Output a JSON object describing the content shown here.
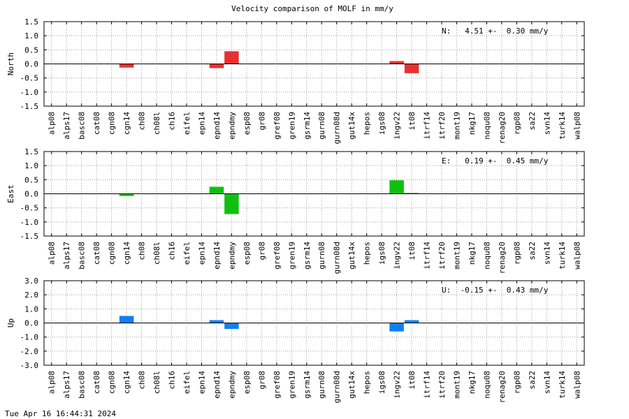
{
  "figure": {
    "title": "Velocity comparison of MOLF in mm/y",
    "timestamp": "Tue Apr 16 16:44:31 2024"
  },
  "chart_data": [
    {
      "type": "bar",
      "ylabel": "North",
      "ylim": [
        -1.5,
        1.5
      ],
      "yticks": [
        "1.5",
        "1.0",
        "0.5",
        "0.0",
        "-0.5",
        "-1.0",
        "-1.5"
      ],
      "grid": true,
      "annotation": "N:   4.51 +-  0.30 mm/y",
      "color": "#e83030",
      "categories": [
        "alp08",
        "alps17",
        "basc08",
        "cat08",
        "cgn08",
        "cgn14",
        "ch08",
        "ch08l",
        "ch16",
        "eifel",
        "epn14",
        "epnd14",
        "epndmy",
        "esp08",
        "gr08",
        "gref08",
        "gren19",
        "gsrm14",
        "gurn08",
        "gurn08d",
        "gut14x",
        "hepos",
        "igs08",
        "ingv22",
        "it08",
        "itrf14",
        "itrf20",
        "mont19",
        "nkg17",
        "noqu08",
        "renag20",
        "rgp08",
        "sa22",
        "svn14",
        "turk14",
        "walp08"
      ],
      "values": [
        0,
        0,
        0,
        0,
        0,
        -0.13,
        0,
        0,
        0,
        0,
        0,
        -0.15,
        0.45,
        0,
        0,
        0,
        0,
        0,
        0,
        0,
        0,
        0,
        0,
        0.1,
        -0.33,
        0,
        0,
        0,
        0,
        0,
        0,
        0,
        0,
        0,
        0,
        0
      ]
    },
    {
      "type": "bar",
      "ylabel": "East",
      "ylim": [
        -1.5,
        1.5
      ],
      "yticks": [
        "1.5",
        "1.0",
        "0.5",
        "0.0",
        "-0.5",
        "-1.0",
        "-1.5"
      ],
      "grid": true,
      "annotation": "E:   0.19 +-  0.45 mm/y",
      "color": "#10c010",
      "categories": [
        "alp08",
        "alps17",
        "basc08",
        "cat08",
        "cgn08",
        "cgn14",
        "ch08",
        "ch08l",
        "ch16",
        "eifel",
        "epn14",
        "epnd14",
        "epndmy",
        "esp08",
        "gr08",
        "gref08",
        "gren19",
        "gsrm14",
        "gurn08",
        "gurn08d",
        "gut14x",
        "hepos",
        "igs08",
        "ingv22",
        "it08",
        "itrf14",
        "itrf20",
        "mont19",
        "nkg17",
        "noqu08",
        "renag20",
        "rgp08",
        "sa22",
        "svn14",
        "turk14",
        "walp08"
      ],
      "values": [
        0,
        0,
        0,
        0,
        0,
        -0.08,
        0,
        0,
        0,
        0,
        0,
        0.25,
        -0.72,
        0,
        0,
        0,
        0,
        0,
        0,
        0,
        0,
        0,
        0,
        0.48,
        0.03,
        0,
        0,
        0,
        0,
        0,
        0,
        0,
        0,
        0,
        0,
        0
      ]
    },
    {
      "type": "bar",
      "ylabel": "Up",
      "ylim": [
        -3.0,
        3.0
      ],
      "yticks": [
        "3.0",
        "2.0",
        "1.0",
        "0.0",
        "-1.0",
        "-2.0",
        "-3.0"
      ],
      "grid": true,
      "annotation": "U:  -0.15 +-  0.43 mm/y",
      "color": "#1080f0",
      "categories": [
        "alp08",
        "alps17",
        "basc08",
        "cat08",
        "cgn08",
        "cgn14",
        "ch08",
        "ch08l",
        "ch16",
        "eifel",
        "epn14",
        "epnd14",
        "epndmy",
        "esp08",
        "gr08",
        "gref08",
        "gren19",
        "gsrm14",
        "gurn08",
        "gurn08d",
        "gut14x",
        "hepos",
        "igs08",
        "ingv22",
        "it08",
        "itrf14",
        "itrf20",
        "mont19",
        "nkg17",
        "noqu08",
        "renag20",
        "rgp08",
        "sa22",
        "svn14",
        "turk14",
        "walp08"
      ],
      "values": [
        0,
        0,
        0,
        0,
        0,
        0.5,
        0,
        0,
        0,
        0,
        0,
        0.2,
        -0.42,
        0,
        0,
        0,
        0,
        0,
        0,
        0,
        0,
        0,
        0,
        -0.6,
        0.2,
        0,
        0,
        0,
        0,
        0,
        0,
        0,
        0,
        0,
        0,
        0
      ]
    }
  ]
}
